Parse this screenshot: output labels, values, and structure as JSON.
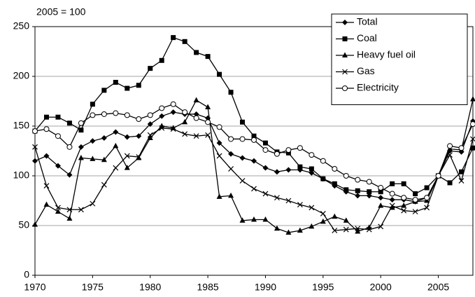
{
  "chart_data": {
    "type": "line",
    "annotation": "2005 = 100",
    "x": [
      1970,
      1971,
      1972,
      1973,
      1974,
      1975,
      1976,
      1977,
      1978,
      1979,
      1980,
      1981,
      1982,
      1983,
      1984,
      1985,
      1986,
      1987,
      1988,
      1989,
      1990,
      1991,
      1992,
      1993,
      1994,
      1995,
      1996,
      1997,
      1998,
      1999,
      2000,
      2001,
      2002,
      2003,
      2004,
      2005,
      2006,
      2007,
      2008
    ],
    "xlim": [
      1970,
      2008
    ],
    "xticks": [
      1970,
      1975,
      1980,
      1985,
      1990,
      1995,
      2000,
      2005
    ],
    "ylim": [
      0,
      250
    ],
    "yticks": [
      0,
      50,
      100,
      150,
      200,
      250
    ],
    "grid": true,
    "legend": "top-right",
    "series": [
      {
        "name": "Total",
        "color": "#000000",
        "marker": "diamond",
        "values": [
          115,
          120,
          110,
          101,
          129,
          135,
          138,
          144,
          139,
          140,
          152,
          160,
          164,
          162,
          162,
          158,
          133,
          122,
          118,
          115,
          108,
          104,
          106,
          106,
          103,
          97,
          90,
          84,
          80,
          80,
          78,
          76,
          76,
          74,
          78,
          100,
          125,
          124,
          155
        ]
      },
      {
        "name": "Coal",
        "color": "#000000",
        "marker": "square",
        "values": [
          145,
          159,
          159,
          153,
          146,
          172,
          186,
          194,
          188,
          191,
          208,
          216,
          239,
          235,
          224,
          220,
          202,
          184,
          154,
          140,
          133,
          124,
          123,
          109,
          107,
          97,
          92,
          86,
          85,
          84,
          84,
          92,
          92,
          82,
          88,
          100,
          93,
          104,
          128
        ]
      },
      {
        "name": "Heavy fuel oil",
        "color": "#000000",
        "marker": "triangle",
        "values": [
          51,
          71,
          64,
          57,
          118,
          117,
          116,
          130,
          108,
          118,
          138,
          150,
          148,
          154,
          176,
          169,
          79,
          80,
          55,
          56,
          56,
          47,
          43,
          45,
          49,
          54,
          59,
          55,
          44,
          48,
          70,
          68,
          70,
          74,
          75,
          100,
          127,
          126,
          177
        ]
      },
      {
        "name": "Gas",
        "color": "#000000",
        "marker": "cross",
        "values": [
          129,
          90,
          68,
          66,
          66,
          72,
          91,
          108,
          120,
          119,
          141,
          148,
          147,
          142,
          140,
          141,
          120,
          107,
          95,
          87,
          82,
          78,
          75,
          71,
          68,
          62,
          45,
          46,
          47,
          46,
          49,
          70,
          65,
          64,
          68,
          100,
          121,
          95,
          137
        ]
      },
      {
        "name": "Electricity",
        "color": "#000000",
        "marker": "circle",
        "values": [
          145,
          147,
          140,
          129,
          153,
          161,
          162,
          163,
          161,
          157,
          161,
          168,
          172,
          164,
          158,
          154,
          149,
          137,
          137,
          136,
          126,
          122,
          126,
          128,
          121,
          115,
          107,
          100,
          96,
          94,
          88,
          82,
          78,
          76,
          78,
          100,
          130,
          128,
          152
        ]
      }
    ]
  }
}
